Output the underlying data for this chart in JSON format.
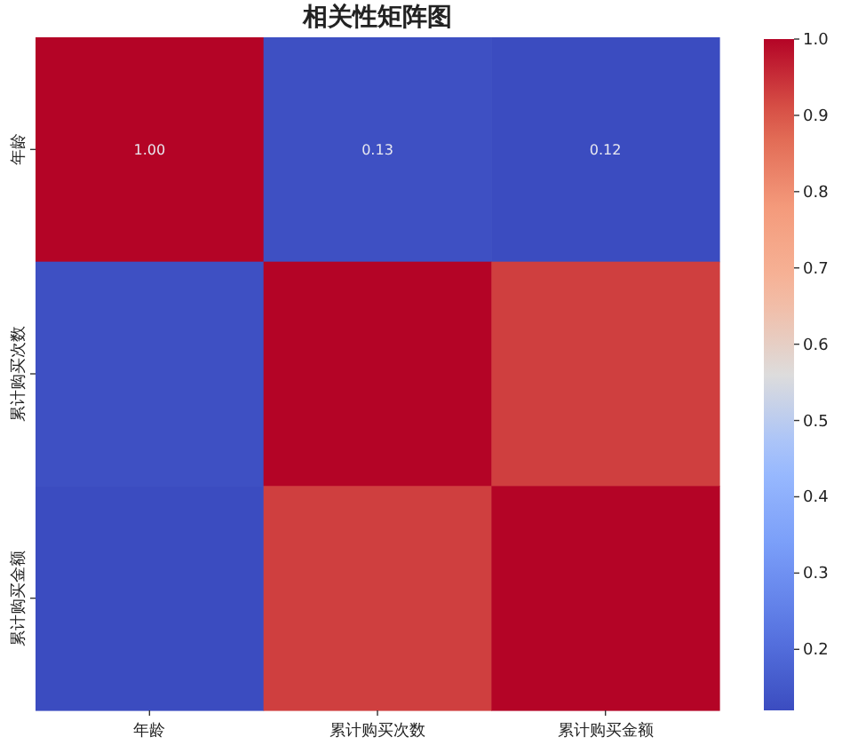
{
  "chart_data": {
    "type": "heatmap",
    "title": "相关性矩阵图",
    "categories": [
      "年龄",
      "累计购买次数",
      "累计购买金额"
    ],
    "y_categories": [
      "年龄",
      "累计购买次数",
      "累计购买金额"
    ],
    "cells": [
      [
        1.0,
        0.13,
        0.12
      ],
      [
        0.13,
        1.0,
        0.93
      ],
      [
        0.12,
        0.93,
        1.0
      ]
    ],
    "cell_labels": [
      [
        "1.00",
        "0.13",
        "0.12"
      ],
      [
        null,
        null,
        null
      ],
      [
        null,
        null,
        null
      ]
    ],
    "clim": [
      0.12,
      1.0
    ],
    "cticks": [
      0.2,
      0.3,
      0.4,
      0.5,
      0.6,
      0.7,
      0.8,
      0.9,
      {
        "value": 1.0,
        "label": "1.0"
      }
    ]
  }
}
